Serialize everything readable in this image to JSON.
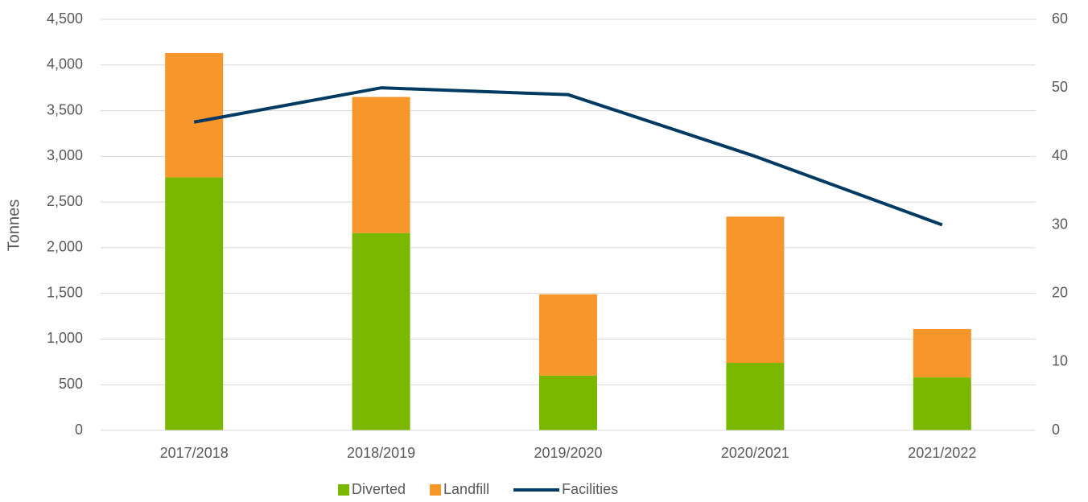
{
  "chart_data": {
    "type": "bar_line",
    "y_label": "Tonnes",
    "categories": [
      "2017/2018",
      "2018/2019",
      "2019/2020",
      "2020/2021",
      "2021/2022"
    ],
    "series": [
      {
        "name": "Diverted",
        "type": "bar",
        "color": "#7ab800",
        "values": [
          2770,
          2160,
          600,
          740,
          580
        ]
      },
      {
        "name": "Landfill",
        "type": "bar",
        "color": "#f7962b",
        "values": [
          1360,
          1490,
          890,
          1600,
          530
        ]
      },
      {
        "name": "Facilities",
        "type": "line",
        "axis": "y2",
        "color": "#003a63",
        "values": [
          45,
          50,
          49,
          40,
          30
        ]
      }
    ],
    "stacked": true,
    "ylim": [
      0,
      4500
    ],
    "yticks": [
      0,
      500,
      {
        "value": 1000,
        "label": "1,000"
      },
      {
        "value": 1500,
        "label": "1,500"
      },
      {
        "value": 2000,
        "label": "2,000"
      },
      {
        "value": 2500,
        "label": "2,500"
      },
      {
        "value": 3000,
        "label": "3,000"
      },
      {
        "value": 3500,
        "label": "3,500"
      },
      {
        "value": 4000,
        "label": "4,000"
      },
      {
        "value": 4500,
        "label": "4,500"
      }
    ],
    "y2lim": [
      0,
      60
    ],
    "y2ticks": [
      0,
      10,
      20,
      30,
      40,
      50,
      60
    ],
    "grid": true,
    "legend": "bottom"
  }
}
